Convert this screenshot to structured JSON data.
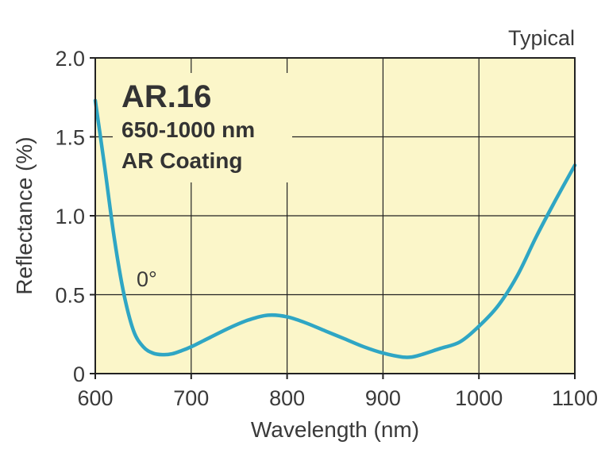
{
  "chart_data": {
    "type": "line",
    "corner_note": "Typical",
    "inset": {
      "title": "AR.16",
      "lines": [
        "650-1000 nm",
        "AR Coating"
      ]
    },
    "annotation": "0°",
    "xlabel": "Wavelength (nm)",
    "ylabel": "Reflectance (%)",
    "xlim": [
      600,
      1100
    ],
    "ylim": [
      0,
      2.0
    ],
    "x_ticks": [
      600,
      700,
      800,
      900,
      1000,
      1100
    ],
    "x_tick_labels": [
      "600",
      "700",
      "800",
      "900",
      "1000",
      "1100"
    ],
    "y_ticks": [
      0,
      0.5,
      1.0,
      1.5,
      2.0
    ],
    "y_tick_labels": [
      "0",
      "0.5",
      "1.0",
      "1.5",
      "2.0"
    ],
    "grid": true,
    "colors": {
      "plot_background": "#fbf6c9",
      "line": "#2fa6c4",
      "grid": "#222222"
    },
    "series": [
      {
        "x": [
          600,
          610,
          620,
          630,
          640,
          650,
          660,
          670,
          680,
          690,
          700,
          720,
          740,
          760,
          780,
          800,
          820,
          840,
          860,
          880,
          900,
          920,
          930,
          940,
          960,
          980,
          1000,
          1020,
          1040,
          1060,
          1080,
          1100
        ],
        "y": [
          1.73,
          1.3,
          0.85,
          0.5,
          0.27,
          0.17,
          0.13,
          0.12,
          0.125,
          0.145,
          0.17,
          0.23,
          0.29,
          0.34,
          0.37,
          0.36,
          0.32,
          0.27,
          0.22,
          0.17,
          0.13,
          0.105,
          0.105,
          0.12,
          0.16,
          0.2,
          0.3,
          0.43,
          0.62,
          0.87,
          1.1,
          1.32
        ]
      }
    ]
  }
}
